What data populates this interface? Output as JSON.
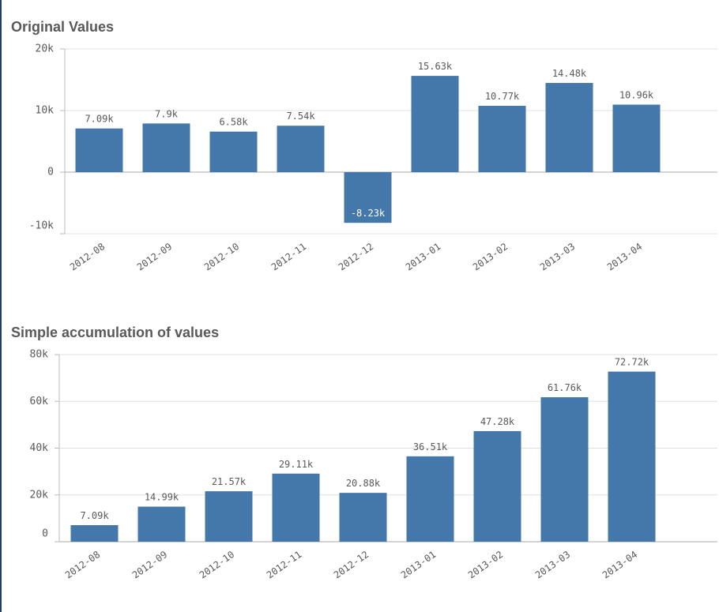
{
  "chart_data": [
    {
      "type": "bar",
      "title": "Original Values",
      "categories": [
        "2012-08",
        "2012-09",
        "2012-10",
        "2012-11",
        "2012-12",
        "2013-01",
        "2013-02",
        "2013-03",
        "2013-04"
      ],
      "values": [
        7090,
        7900,
        6580,
        7540,
        -8230,
        15630,
        10770,
        14480,
        10960
      ],
      "value_labels": [
        "7.09k",
        "7.9k",
        "6.58k",
        "7.54k",
        "-8.23k",
        "15.63k",
        "10.77k",
        "14.48k",
        "10.96k"
      ],
      "color": "#4477aa",
      "ylim": [
        -10000,
        20000
      ],
      "yticks": [
        {
          "value": -10000,
          "label": "-10k"
        },
        0,
        {
          "value": 10000,
          "label": "10k"
        },
        {
          "value": 20000,
          "label": "20k"
        }
      ],
      "grid": true
    },
    {
      "type": "bar",
      "title": "Simple accumulation of values",
      "categories": [
        "2012-08",
        "2012-09",
        "2012-10",
        "2012-11",
        "2012-12",
        "2013-01",
        "2013-02",
        "2013-03",
        "2013-04"
      ],
      "values": [
        7090,
        14990,
        21570,
        29110,
        20880,
        36510,
        47280,
        61760,
        72720
      ],
      "value_labels": [
        "7.09k",
        "14.99k",
        "21.57k",
        "29.11k",
        "20.88k",
        "36.51k",
        "47.28k",
        "61.76k",
        "72.72k"
      ],
      "color": "#4477aa",
      "ylim": [
        0,
        80000
      ],
      "yticks": [
        0,
        {
          "value": 20000,
          "label": "20k"
        },
        {
          "value": 40000,
          "label": "40k"
        },
        {
          "value": 60000,
          "label": "60k"
        },
        {
          "value": 80000,
          "label": "80k"
        }
      ],
      "grid": true
    }
  ]
}
